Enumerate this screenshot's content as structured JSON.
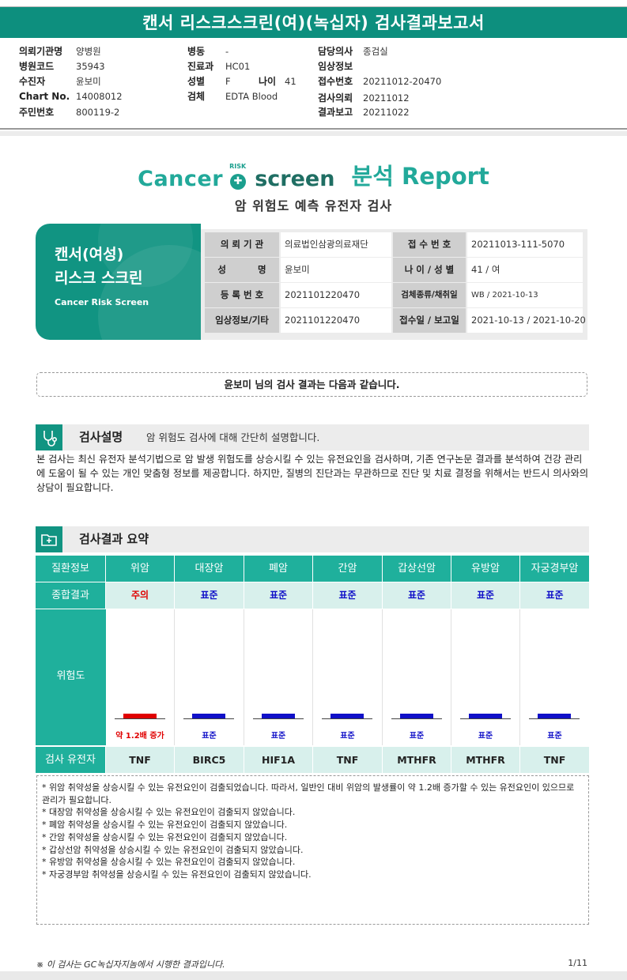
{
  "banner": {
    "title": "캔서 리스크스크린(여)(녹십자) 검사결과보고서"
  },
  "header": {
    "col1": [
      {
        "label": "의뢰기관명",
        "value": "양병원"
      },
      {
        "label": "병원코드",
        "value": "35943"
      },
      {
        "label": "수진자",
        "value": "윤보미"
      },
      {
        "label": "Chart No.",
        "value": "14008012"
      },
      {
        "label": "주민번호",
        "value": "800119-2"
      }
    ],
    "col2": [
      {
        "label": "병동",
        "value": "-"
      },
      {
        "label": "진료과",
        "value": "HC01"
      },
      {
        "label": "성별",
        "value": "F"
      },
      {
        "label": "검체",
        "value": "EDTA Blood"
      }
    ],
    "age": {
      "label": "나이",
      "value": "41"
    },
    "col3": [
      {
        "label": "담당의사",
        "value": "종검실"
      },
      {
        "label": "임상정보",
        "value": ""
      },
      {
        "label": "접수번호",
        "value": "20211012-20470"
      },
      {
        "label": "검사의뢰",
        "value": "20211012"
      },
      {
        "label": "결과보고",
        "value": "20211022"
      }
    ]
  },
  "logo": {
    "cancer": "Cancer",
    "risk": "RISK",
    "screen": "screen",
    "report": "분석 Report"
  },
  "subtitle": "암 위험도 예측 유전자 검사",
  "card": {
    "line1": "캔서(여성)",
    "line2": "리스크 스크린",
    "line3": "Cancer Risk Screen"
  },
  "info": [
    {
      "l1": "의 뢰 기 관",
      "v1": "의료법인삼광의료재단",
      "l2": "접 수 번 호",
      "v2": "20211013-111-5070"
    },
    {
      "l1": "성          명",
      "v1": "윤보미",
      "l2": "나 이 / 성 별",
      "v2": "41 / 여"
    },
    {
      "l1": "등 록 번 호",
      "v1": "2021101220470",
      "l2": "검체종류/채취일",
      "v2": "WB / 2021-10-13"
    },
    {
      "l1": "임상정보/기타",
      "v1": "2021101220470",
      "l2": "접수일 / 보고일",
      "v2": "2021-10-13 / 2021-10-20"
    }
  ],
  "greeting": "윤보미 님의 검사 결과는 다음과 같습니다.",
  "section1": {
    "title": "검사설명",
    "desc": "암 위험도 검사에 대해 간단히 설명합니다.",
    "body": "본 검사는 최신 유전자 분석기법으로 암 발생 위험도를 상승시킬 수 있는 유전요인을 검사하며, 기존 연구논문 결과를 분석하여 건강 관리에 도움이 될 수 있는 개인 맞춤형 정보를 제공합니다. 하지만, 질병의 진단과는 무관하므로 진단 및 치료 결정을 위해서는 반드시 의사와의 상담이 필요합니다."
  },
  "section2": {
    "title": "검사결과 요약"
  },
  "results": {
    "row_labels": {
      "disease": "질환정보",
      "total": "종합결과",
      "risk": "위험도",
      "gene": "검사 유전자"
    },
    "cancers": [
      {
        "name": "위암",
        "result": "주의",
        "result_color": "#e00000",
        "risk_label": "약 1.2배 증가",
        "bar_color": "#e00000",
        "gene": "TNF"
      },
      {
        "name": "대장암",
        "result": "표준",
        "result_color": "#1010c8",
        "risk_label": "표준",
        "bar_color": "#1010c8",
        "gene": "BIRC5"
      },
      {
        "name": "폐암",
        "result": "표준",
        "result_color": "#1010c8",
        "risk_label": "표준",
        "bar_color": "#1010c8",
        "gene": "HIF1A"
      },
      {
        "name": "간암",
        "result": "표준",
        "result_color": "#1010c8",
        "risk_label": "표준",
        "bar_color": "#1010c8",
        "gene": "TNF"
      },
      {
        "name": "갑상선암",
        "result": "표준",
        "result_color": "#1010c8",
        "risk_label": "표준",
        "bar_color": "#1010c8",
        "gene": "MTHFR"
      },
      {
        "name": "유방암",
        "result": "표준",
        "result_color": "#1010c8",
        "risk_label": "표준",
        "bar_color": "#1010c8",
        "gene": "MTHFR"
      },
      {
        "name": "자궁경부암",
        "result": "표준",
        "result_color": "#1010c8",
        "risk_label": "표준",
        "bar_color": "#1010c8",
        "gene": "TNF"
      }
    ]
  },
  "notes": [
    "* 위암 취약성을 상승시킬 수 있는 유전요인이 검출되었습니다. 따라서, 일반인 대비 위암의 발생률이 약 1.2배 증가할 수 있는 유전요인이 있으므로 관리가 필요합니다.",
    "* 대장암 취약성을 상승시킬 수 있는 유전요인이 검출되지 않았습니다.",
    "* 폐암 취약성을 상승시킬 수 있는 유전요인이 검출되지 않았습니다.",
    "* 간암 취약성을 상승시킬 수 있는 유전요인이 검출되지 않았습니다.",
    "* 갑상선암 취약성을 상승시킬 수 있는 유전요인이 검출되지 않았습니다.",
    "* 유방암 취약성을 상승시킬 수 있는 유전요인이 검출되지 않았습니다.",
    "* 자궁경부암 취약성을 상승시킬 수 있는 유전요인이 검출되지 않았습니다."
  ],
  "footer": {
    "note": "※ 이 검사는 GC녹십자지놈에서 시행한 결과입니다.",
    "page": "1/11"
  }
}
